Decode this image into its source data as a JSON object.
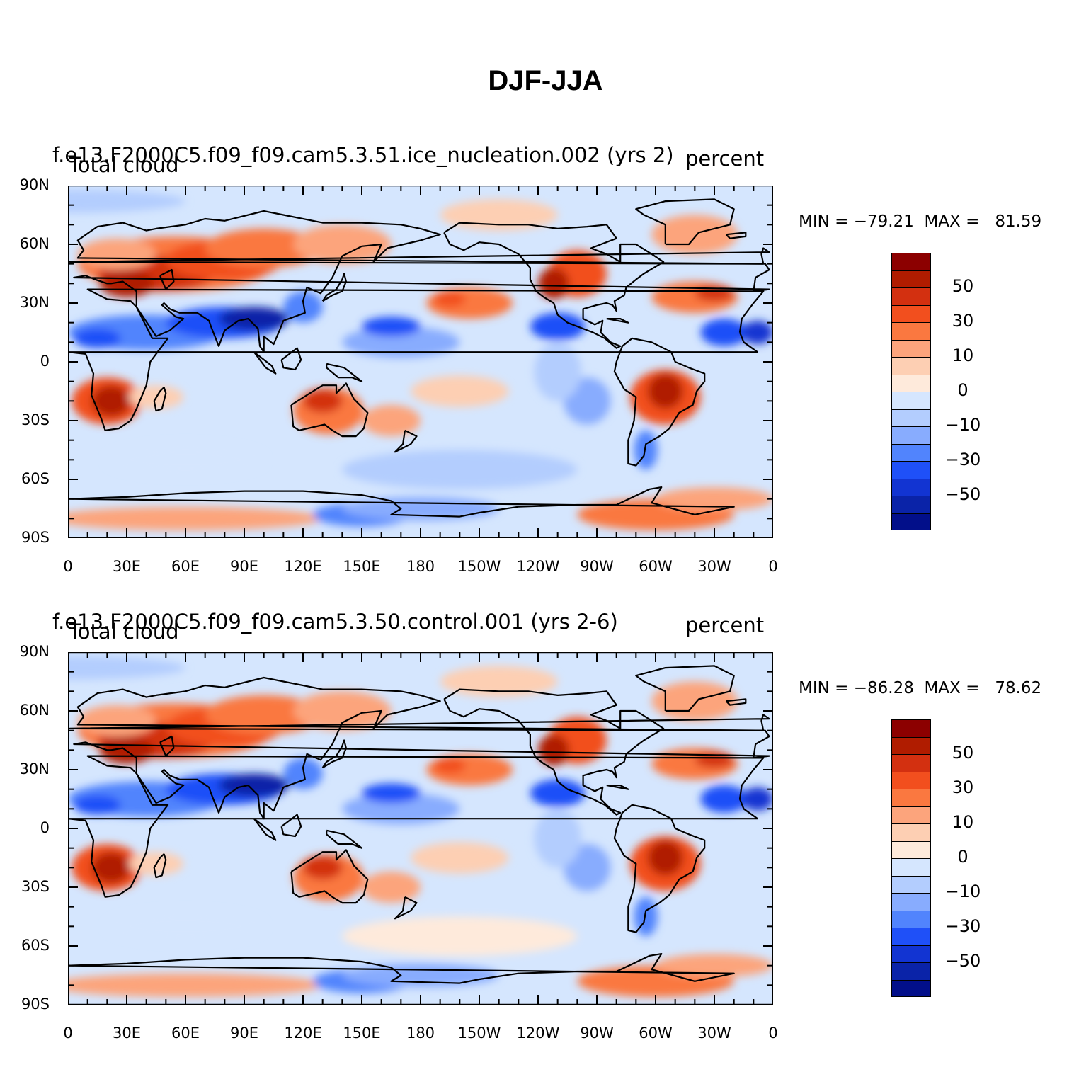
{
  "title": "DJF-JJA",
  "panels": [
    {
      "case": "f.e13.F2000C5.f09_f09.cam5.3.51.ice_nucleation.002 (yrs 2)",
      "variable": "Total cloud",
      "units": "percent",
      "stats": "MIN = −79.21  MAX =   81.59"
    },
    {
      "case": "f.e13.F2000C5.f09_f09.cam5.3.50.control.001 (yrs 2-6)",
      "variable": "Total cloud",
      "units": "percent",
      "stats": "MIN = −86.28  MAX =   78.62"
    }
  ],
  "axes": {
    "lat_labels": [
      "90N",
      "60N",
      "30N",
      "0",
      "30S",
      "60S",
      "90S"
    ],
    "lon_labels": [
      "0",
      "30E",
      "60E",
      "90E",
      "120E",
      "150E",
      "180",
      "150W",
      "120W",
      "90W",
      "60W",
      "30W",
      "0"
    ]
  },
  "colorbar": {
    "colors": [
      "#8c0000",
      "#b01c00",
      "#d33010",
      "#f24f1e",
      "#fa7840",
      "#fca47c",
      "#fdcfb3",
      "#feeadb",
      "#d5e6fe",
      "#b3cdfe",
      "#88acfe",
      "#5184fd",
      "#1f50f8",
      "#1234d2",
      "#0a23a8",
      "#020f8a"
    ],
    "labels": [
      "50",
      "30",
      "10",
      "0",
      "−10",
      "−30",
      "−50"
    ]
  }
}
